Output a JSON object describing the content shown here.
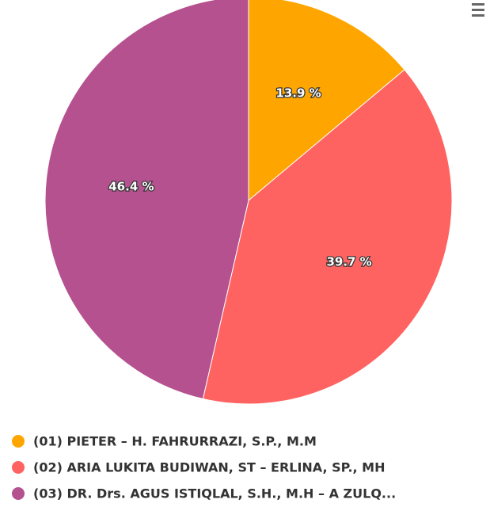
{
  "chart_data": {
    "type": "pie",
    "categories": [
      "(01) PIETER – H. FAHRURRAZI, S.P., M.M",
      "(02) ARIA LUKITA BUDIWAN, ST – ERLINA, SP., MH",
      "(03) DR. Drs. AGUS ISTIQLAL, S.H., M.H – A ZULQ..."
    ],
    "values": [
      13.9,
      39.7,
      46.4
    ],
    "value_labels": [
      "13.9 %",
      "39.7 %",
      "46.4 %"
    ],
    "colors": [
      "#ffa500",
      "#ff6361",
      "#b5518f"
    ],
    "legend": "bottom"
  }
}
